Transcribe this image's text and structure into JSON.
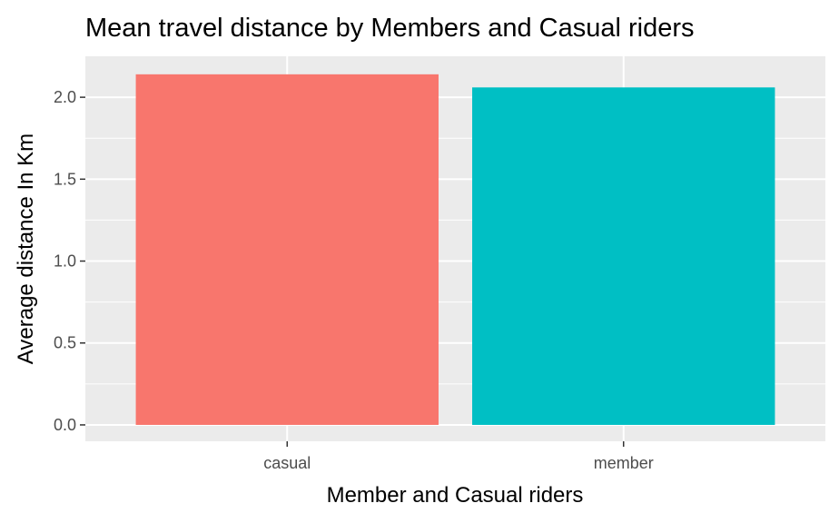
{
  "chart_data": {
    "type": "bar",
    "title": "Mean travel distance by Members and Casual riders",
    "xlabel": "Member and Casual riders",
    "ylabel": "Average distance In Km",
    "categories": [
      "casual",
      "member"
    ],
    "values": [
      2.14,
      2.06
    ],
    "bar_colors": [
      "#F8766D",
      "#00BFC4"
    ],
    "ylim": [
      -0.1,
      2.25
    ],
    "yticks": [
      0.0,
      0.5,
      1.0,
      1.5,
      2.0
    ],
    "ytick_labels": [
      "0.0",
      "0.5",
      "1.0",
      "1.5",
      "2.0"
    ],
    "grid": true,
    "legend": "none",
    "panel_color": "#EBEBEB",
    "grid_color": "#FFFFFF"
  }
}
